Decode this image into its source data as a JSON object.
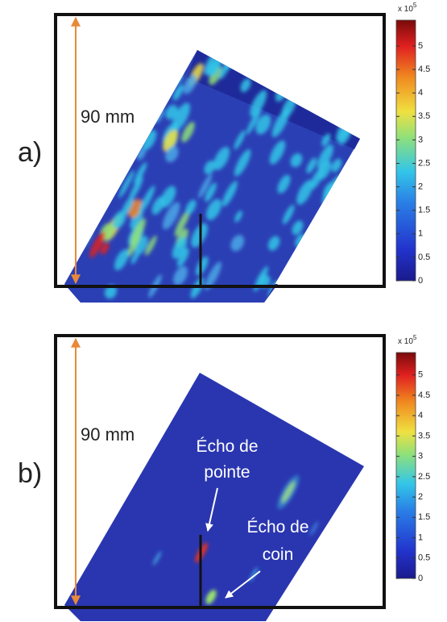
{
  "panels": [
    {
      "label": "a)",
      "dimension": "90 mm",
      "colorbar": {
        "multiplier": "x 10",
        "exponent": "5",
        "lim": [
          0,
          5.55
        ],
        "ticks": [
          0,
          0.5,
          1,
          1.5,
          2,
          2.5,
          3,
          3.5,
          4,
          4.5,
          5
        ]
      }
    },
    {
      "label": "b)",
      "dimension": "90 mm",
      "colorbar": {
        "multiplier": "x 10",
        "exponent": "5",
        "lim": [
          0,
          5.55
        ],
        "ticks": [
          0,
          0.5,
          1,
          1.5,
          2,
          2.5,
          3,
          3.5,
          4,
          4.5,
          5
        ]
      },
      "annotations": [
        {
          "lines": [
            "Écho de",
            "pointe"
          ]
        },
        {
          "lines": [
            "Écho de",
            "coin"
          ]
        }
      ]
    }
  ]
}
